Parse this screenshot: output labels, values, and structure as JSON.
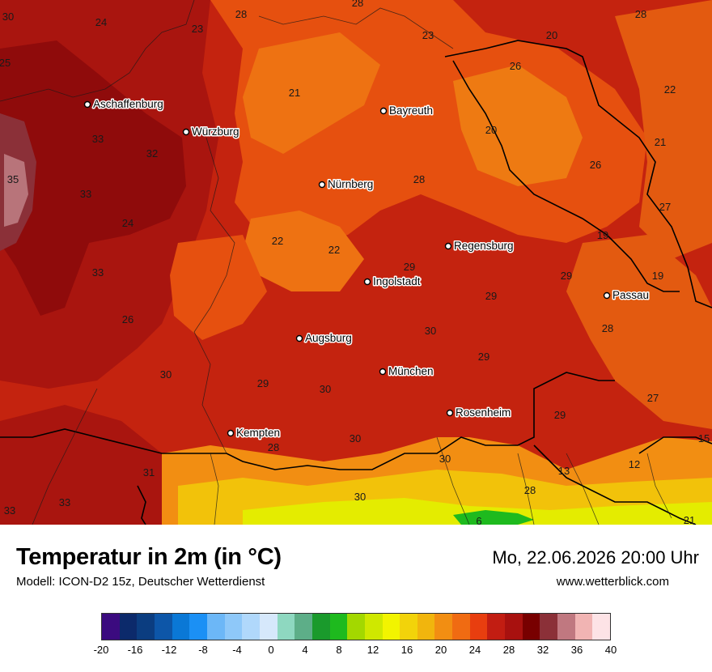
{
  "map": {
    "cities": [
      {
        "name": "Aschaffenburg"
      },
      {
        "name": "Würzburg"
      },
      {
        "name": "Bayreuth"
      },
      {
        "name": "Nürnberg"
      },
      {
        "name": "Regensburg"
      },
      {
        "name": "Ingolstadt"
      },
      {
        "name": "Passau"
      },
      {
        "name": "Augsburg"
      },
      {
        "name": "München"
      },
      {
        "name": "Rosenheim"
      },
      {
        "name": "Kempten"
      }
    ],
    "isotherm_labels": [
      "30",
      "24",
      "28",
      "23",
      "28",
      "23",
      "20",
      "28",
      "25",
      "26",
      "22",
      "21",
      "20",
      "21",
      "33",
      "32",
      "26",
      "35",
      "28",
      "27",
      "33",
      "24",
      "22",
      "22",
      "19",
      "29",
      "19",
      "29",
      "33",
      "29",
      "26",
      "30",
      "28",
      "30",
      "29",
      "29",
      "30",
      "27",
      "15",
      "29",
      "30",
      "28",
      "12",
      "30",
      "13",
      "31",
      "33",
      "33",
      "30",
      "28",
      "6",
      "21"
    ]
  },
  "footer": {
    "title": "Temperatur in 2m (in °C)",
    "model": "Modell: ICON-D2 15z, Deutscher Wetterdienst",
    "datetime": "Mo, 22.06.2026 20:00 Uhr",
    "website": "www.wetterblick.com"
  },
  "legend": {
    "unit": "°C",
    "tick_labels": [
      "-20",
      "-16",
      "-12",
      "-8",
      "-4",
      "0",
      "4",
      "8",
      "12",
      "16",
      "20",
      "24",
      "28",
      "32",
      "36",
      "40"
    ],
    "colors": [
      "#3b0b7f",
      "#0c2a6b",
      "#0b3d80",
      "#0d56a8",
      "#0a78d6",
      "#1b90f5",
      "#6cb7f7",
      "#8ec8f9",
      "#b0d8fb",
      "#d6e8fb",
      "#8ed8c0",
      "#5dae88",
      "#1a9a2c",
      "#1eba1e",
      "#a3d800",
      "#cfe800",
      "#f2f400",
      "#f2d30a",
      "#f1b50d",
      "#f28e12",
      "#f06b12",
      "#e83e0f",
      "#c21d12",
      "#a8110f",
      "#780000",
      "#8b3038",
      "#c07880",
      "#f1b4b3",
      "#fde3e6"
    ]
  }
}
